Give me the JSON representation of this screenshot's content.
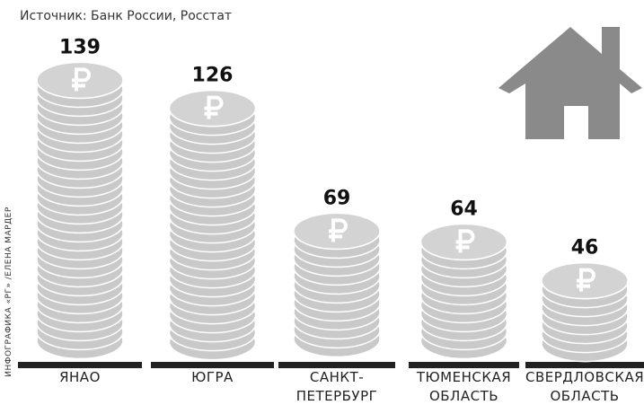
{
  "subtitle": "Источник: Банк России, Росстат",
  "credit": "ИНФОГРАФИКА «РГ» /ЕЛЕНА МАРДЕР",
  "chart_data": {
    "type": "bar",
    "categories": [
      "ЯНАО",
      "ЮГРА",
      "САНКТ-\nПЕТЕРБУРГ",
      "ТЮМЕНСКАЯ\nОБЛАСТЬ",
      "СВЕРДЛОВСКАЯ\nОБЛАСТЬ"
    ],
    "values": [
      139,
      126,
      69,
      64,
      46
    ],
    "color": "#c9c9c9"
  }
}
